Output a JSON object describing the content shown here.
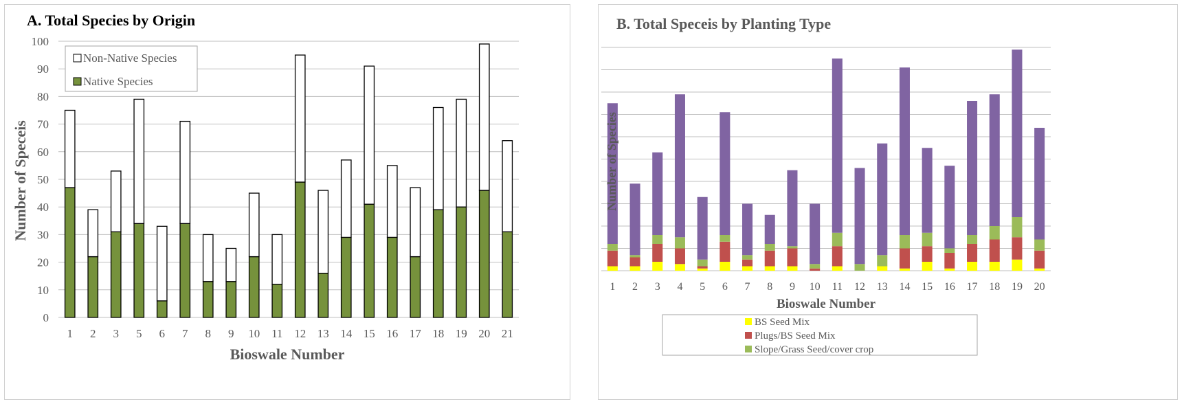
{
  "chart_data": [
    {
      "type": "bar",
      "stacked": true,
      "title": "A. Total Species by Origin",
      "xlabel": "Bioswale Number",
      "ylabel": "Number of Speceis",
      "ylim": [
        0,
        100
      ],
      "yticks": [
        0,
        10,
        20,
        30,
        40,
        50,
        60,
        70,
        80,
        90,
        100
      ],
      "grid": true,
      "legend_position": "top-left",
      "categories": [
        "1",
        "2",
        "3",
        "5",
        "6",
        "7",
        "8",
        "9",
        "10",
        "11",
        "12",
        "13",
        "14",
        "15",
        "16",
        "17",
        "18",
        "19",
        "20",
        "21"
      ],
      "series": [
        {
          "name": "Native Species",
          "color": "#76923c",
          "values": [
            47,
            22,
            31,
            34,
            6,
            34,
            13,
            13,
            22,
            12,
            49,
            16,
            29,
            41,
            29,
            22,
            39,
            40,
            46,
            31
          ]
        },
        {
          "name": "Non-Native Species",
          "color": "#ffffff",
          "values": [
            28,
            17,
            22,
            45,
            27,
            37,
            17,
            12,
            23,
            18,
            46,
            30,
            28,
            50,
            26,
            25,
            37,
            39,
            53,
            33
          ]
        }
      ],
      "legend_order": [
        "Non-Native Species",
        "Native Species"
      ]
    },
    {
      "type": "bar",
      "stacked": true,
      "title": "B. Total Speceis by Planting Type",
      "xlabel": "Bioswale Number",
      "ylabel": "Number of Species",
      "ylim": [
        0,
        100
      ],
      "yticks": [
        0,
        10,
        20,
        30,
        40,
        50,
        60,
        70,
        80,
        90,
        100
      ],
      "grid": true,
      "legend_position": "bottom",
      "categories": [
        "1",
        "2",
        "3",
        "4",
        "5",
        "6",
        "7",
        "8",
        "9",
        "10",
        "11",
        "12",
        "13",
        "14",
        "15",
        "16",
        "17",
        "18",
        "19",
        "20"
      ],
      "series": [
        {
          "name": "BS Seed Mix",
          "color": "#ffff00",
          "values": [
            2,
            2,
            4,
            3,
            1,
            4,
            2,
            2,
            2,
            0,
            2,
            0,
            2,
            1,
            4,
            1,
            4,
            4,
            5,
            1
          ]
        },
        {
          "name": "Plugs/BS Seed Mix",
          "color": "#c0504d",
          "values": [
            7,
            4,
            8,
            7,
            1,
            9,
            3,
            7,
            8,
            1,
            9,
            0,
            0,
            9,
            7,
            7,
            8,
            10,
            10,
            8
          ]
        },
        {
          "name": "Slope/Grass Seed/cover crop",
          "color": "#9bbb59",
          "values": [
            3,
            1,
            4,
            5,
            3,
            3,
            2,
            3,
            1,
            2,
            6,
            3,
            5,
            6,
            6,
            2,
            4,
            6,
            9,
            5
          ]
        },
        {
          "name": "",
          "color": "#8064a2",
          "values": [
            63,
            32,
            37,
            64,
            28,
            55,
            23,
            13,
            34,
            27,
            78,
            43,
            50,
            75,
            38,
            37,
            60,
            59,
            75,
            50
          ]
        }
      ],
      "legend_order": [
        "BS Seed Mix",
        "Plugs/BS Seed Mix",
        "Slope/Grass Seed/cover crop"
      ]
    }
  ]
}
